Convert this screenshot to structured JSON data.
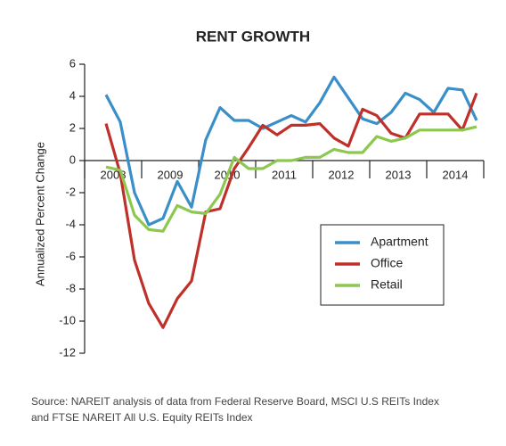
{
  "chart_data": {
    "type": "line",
    "title": "RENT GROWTH",
    "y_label": "Annualized Percent Change",
    "x": [
      2008.375,
      2008.625,
      2008.875,
      2009.125,
      2009.375,
      2009.625,
      2009.875,
      2010.125,
      2010.375,
      2010.625,
      2010.875,
      2011.125,
      2011.375,
      2011.625,
      2011.875,
      2012.125,
      2012.375,
      2012.625,
      2012.875,
      2013.125,
      2013.375,
      2013.625,
      2013.875,
      2014.125,
      2014.375,
      2014.625,
      2014.875
    ],
    "series": [
      {
        "name": "Apartment",
        "color": "#3a8fc8",
        "values": [
          4.1,
          2.4,
          -2,
          -4,
          -3.6,
          -1.3,
          -2.9,
          1.3,
          3.3,
          2.5,
          2.5,
          2.0,
          2.4,
          2.8,
          2.4,
          3.6,
          5.2,
          3.9,
          2.6,
          2.3,
          3.0,
          4.2,
          3.8,
          3.0,
          4.5,
          4.4,
          2.5
        ]
      },
      {
        "name": "Office",
        "color": "#c0302a",
        "values": [
          2.3,
          -0.8,
          -6.2,
          -8.9,
          -10.4,
          -8.6,
          -7.5,
          -3.2,
          -3.0,
          -0.5,
          0.8,
          2.2,
          1.6,
          2.2,
          2.2,
          2.3,
          1.4,
          0.9,
          3.2,
          2.8,
          1.7,
          1.4,
          2.9,
          2.9,
          2.9,
          1.9,
          4.2
        ]
      },
      {
        "name": "Retail",
        "color": "#8cc850",
        "values": [
          -0.4,
          -0.6,
          -3.4,
          -4.3,
          -4.4,
          -2.8,
          -3.2,
          -3.3,
          -2.1,
          0.2,
          -0.5,
          -0.5,
          0.0,
          0.0,
          0.2,
          0.2,
          0.7,
          0.5,
          0.5,
          1.5,
          1.2,
          1.4,
          1.9,
          1.9,
          1.9,
          1.9,
          2.1
        ]
      }
    ],
    "xlim": [
      2008,
      2015
    ],
    "xticks": [
      2008,
      2009,
      2010,
      2011,
      2012,
      2013,
      2014,
      2015
    ],
    "year_labels": [
      "2008",
      "2009",
      "2010",
      "2011",
      "2012",
      "2013",
      "2014"
    ],
    "ylim": [
      -12,
      6
    ],
    "yticks": [
      6,
      4,
      2,
      0,
      -2,
      -4,
      -6,
      -8,
      -10,
      -12
    ],
    "legend": "lower-right",
    "source": [
      "Source: NAREIT analysis of data from Federal Reserve Board, MSCI U.S REITs Index",
      "and FTSE NAREIT All U.S. Equity REITs Index"
    ]
  }
}
